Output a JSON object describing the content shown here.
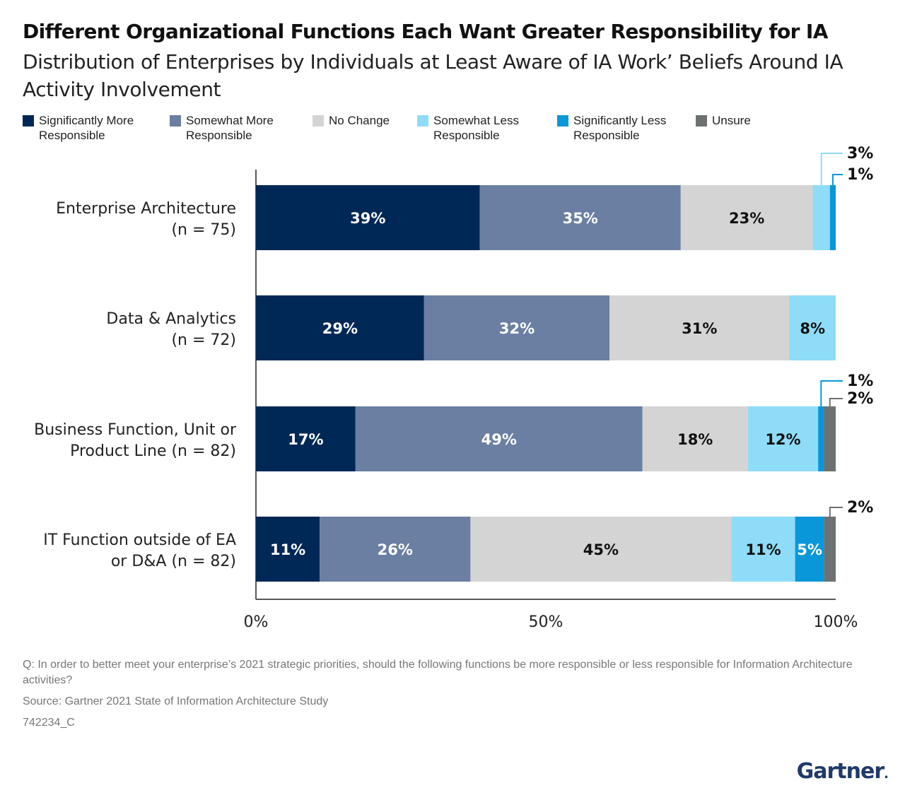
{
  "title": "Different Organizational Functions Each Want Greater Responsibility for IA",
  "subtitle": "Distribution of Enterprises by Individuals at Least Aware of IA Work’ Beliefs Around IA Activity Involvement",
  "legend": [
    {
      "label": "Significantly More Responsible",
      "color": "#002856"
    },
    {
      "label": "Somewhat More Responsible",
      "color": "#6b7fa3"
    },
    {
      "label": "No Change",
      "color": "#d4d4d4"
    },
    {
      "label": "Somewhat Less Responsible",
      "color": "#8fdcf8"
    },
    {
      "label": "Significantly Less Responsible",
      "color": "#0a97d9"
    },
    {
      "label": "Unsure",
      "color": "#6d7172"
    }
  ],
  "chart_data": {
    "type": "bar",
    "orientation": "horizontal",
    "stacked": true,
    "xlim": [
      0,
      100
    ],
    "x_ticks": [
      "0%",
      "50%",
      "100%"
    ],
    "categories": [
      [
        "Enterprise Architecture",
        "(n = 75)"
      ],
      [
        "Data & Analytics",
        "(n = 72)"
      ],
      [
        "Business Function, Unit or",
        "Product Line (n = 82)"
      ],
      [
        "IT Function outside of EA",
        "or D&A (n = 82)"
      ]
    ],
    "series": [
      {
        "name": "Significantly More Responsible",
        "color": "#002856",
        "values": [
          39,
          29,
          17,
          11
        ]
      },
      {
        "name": "Somewhat More Responsible",
        "color": "#6b7fa3",
        "values": [
          35,
          32,
          49,
          26
        ]
      },
      {
        "name": "No Change",
        "color": "#d4d4d4",
        "values": [
          23,
          31,
          18,
          45
        ]
      },
      {
        "name": "Somewhat Less Responsible",
        "color": "#8fdcf8",
        "values": [
          3,
          8,
          12,
          11
        ]
      },
      {
        "name": "Significantly Less Responsible",
        "color": "#0a97d9",
        "values": [
          1,
          0,
          1,
          5
        ]
      },
      {
        "name": "Unsure",
        "color": "#6d7172",
        "values": [
          0,
          0,
          2,
          2
        ]
      }
    ],
    "labels": [
      [
        "39%",
        "35%",
        "23%",
        "3%",
        "1%",
        ""
      ],
      [
        "29%",
        "32%",
        "31%",
        "8%",
        "",
        ""
      ],
      [
        "17%",
        "49%",
        "18%",
        "12%",
        "1%",
        "2%"
      ],
      [
        "11%",
        "26%",
        "45%",
        "11%",
        "5%",
        "2%"
      ]
    ],
    "grid": false
  },
  "footer": {
    "question": "Q: In order to better meet your enterprise’s 2021 strategic priorities, should the following functions be more responsible or less responsible for Information Architecture activities?",
    "source": "Source: Gartner 2021 State of Information Architecture Study",
    "id": "742234_C"
  },
  "logo": "Gartner"
}
